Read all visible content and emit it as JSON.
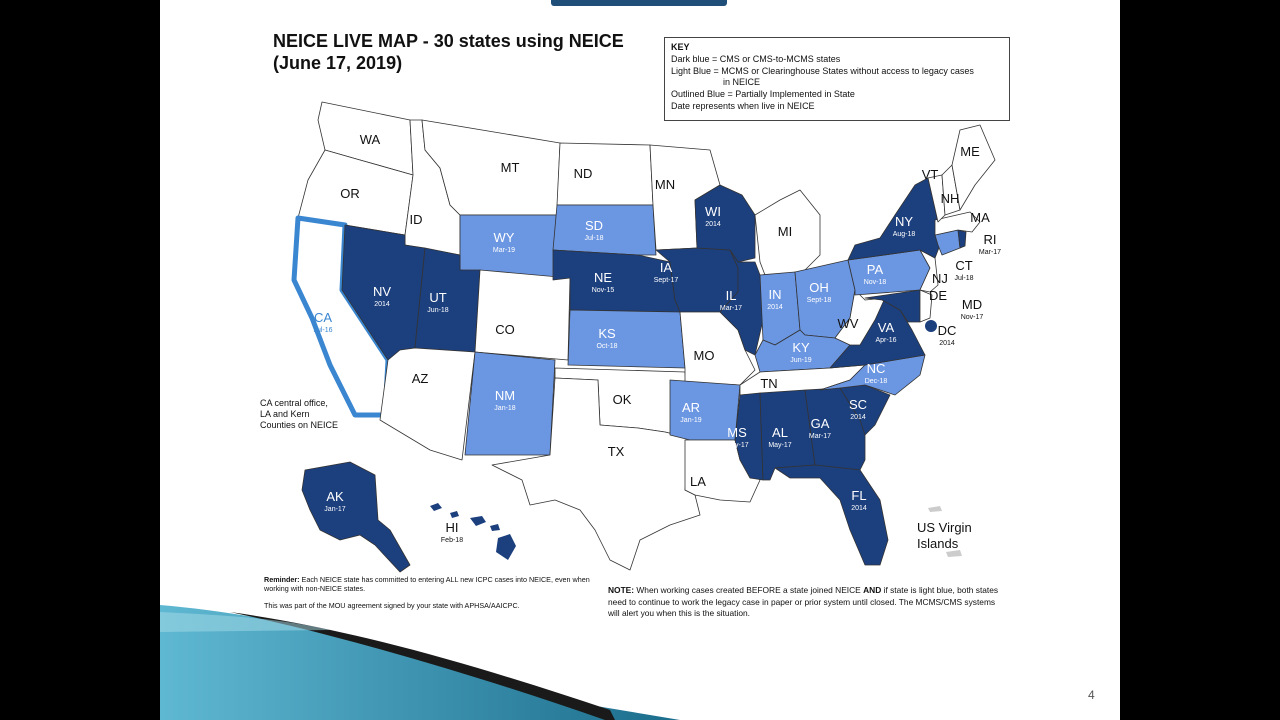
{
  "slide": {
    "title_line1": "NEICE LIVE MAP - 30 states using NEICE",
    "title_line2": "(June 17, 2019)",
    "page_number": "4"
  },
  "key": {
    "title": "KEY",
    "dark_blue": "Dark blue = CMS or CMS-to-MCMS states",
    "light_blue": "Light Blue = MCMS or Clearinghouse States without access to legacy cases",
    "light_blue_cont": "in NEICE",
    "outlined_blue": "Outlined Blue = Partially Implemented in State",
    "date_note": "Date represents when live in NEICE"
  },
  "colors": {
    "dark_blue": "#1c3f7e",
    "light_blue": "#6b96e2",
    "outline_blue": "#3a86d0",
    "not_live": "#ffffff"
  },
  "states": [
    {
      "abbr": "WA",
      "status": "none",
      "date": ""
    },
    {
      "abbr": "OR",
      "status": "none",
      "date": ""
    },
    {
      "abbr": "CA",
      "status": "partial",
      "date": "Jul-16"
    },
    {
      "abbr": "ID",
      "status": "none",
      "date": ""
    },
    {
      "abbr": "NV",
      "status": "dark",
      "date": "2014"
    },
    {
      "abbr": "MT",
      "status": "none",
      "date": ""
    },
    {
      "abbr": "WY",
      "status": "light",
      "date": "Mar-19"
    },
    {
      "abbr": "UT",
      "status": "dark",
      "date": "Jun-18"
    },
    {
      "abbr": "AZ",
      "status": "none",
      "date": ""
    },
    {
      "abbr": "CO",
      "status": "none",
      "date": ""
    },
    {
      "abbr": "NM",
      "status": "light",
      "date": "Jan-18"
    },
    {
      "abbr": "ND",
      "status": "none",
      "date": ""
    },
    {
      "abbr": "SD",
      "status": "light",
      "date": "Jul-18"
    },
    {
      "abbr": "NE",
      "status": "dark",
      "date": "Nov-15"
    },
    {
      "abbr": "KS",
      "status": "light",
      "date": "Oct-18"
    },
    {
      "abbr": "OK",
      "status": "none",
      "date": ""
    },
    {
      "abbr": "TX",
      "status": "none",
      "date": ""
    },
    {
      "abbr": "MN",
      "status": "none",
      "date": ""
    },
    {
      "abbr": "IA",
      "status": "dark",
      "date": "Sept-17"
    },
    {
      "abbr": "MO",
      "status": "none",
      "date": ""
    },
    {
      "abbr": "AR",
      "status": "light",
      "date": "Jan-19"
    },
    {
      "abbr": "LA",
      "status": "none",
      "date": ""
    },
    {
      "abbr": "WI",
      "status": "dark",
      "date": "2014"
    },
    {
      "abbr": "IL",
      "status": "dark",
      "date": "Mar-17"
    },
    {
      "abbr": "MI",
      "status": "none",
      "date": ""
    },
    {
      "abbr": "IN",
      "status": "light",
      "date": "2014"
    },
    {
      "abbr": "OH",
      "status": "light",
      "date": "Sept-18"
    },
    {
      "abbr": "KY",
      "status": "light",
      "date": "Jun-19"
    },
    {
      "abbr": "TN",
      "status": "none",
      "date": ""
    },
    {
      "abbr": "MS",
      "status": "dark",
      "date": "May-17"
    },
    {
      "abbr": "AL",
      "status": "dark",
      "date": "May-17"
    },
    {
      "abbr": "GA",
      "status": "dark",
      "date": "Mar-17"
    },
    {
      "abbr": "FL",
      "status": "dark",
      "date": "2014"
    },
    {
      "abbr": "SC",
      "status": "dark",
      "date": "2014"
    },
    {
      "abbr": "NC",
      "status": "light",
      "date": "Dec-18"
    },
    {
      "abbr": "VA",
      "status": "dark",
      "date": "Apr-16"
    },
    {
      "abbr": "WV",
      "status": "none",
      "date": ""
    },
    {
      "abbr": "PA",
      "status": "light",
      "date": "Nov-18"
    },
    {
      "abbr": "NY",
      "status": "dark",
      "date": "Aug-18"
    },
    {
      "abbr": "VT",
      "status": "none",
      "date": ""
    },
    {
      "abbr": "NH",
      "status": "none",
      "date": ""
    },
    {
      "abbr": "ME",
      "status": "none",
      "date": ""
    },
    {
      "abbr": "MA",
      "status": "none",
      "date": ""
    },
    {
      "abbr": "RI",
      "status": "dark",
      "date": "Mar-17"
    },
    {
      "abbr": "CT",
      "status": "light",
      "date": "Jul-18"
    },
    {
      "abbr": "NJ",
      "status": "none",
      "date": ""
    },
    {
      "abbr": "DE",
      "status": "none",
      "date": ""
    },
    {
      "abbr": "MD",
      "status": "dark",
      "date": "Nov-17"
    },
    {
      "abbr": "DC",
      "status": "dark",
      "date": "2014"
    },
    {
      "abbr": "AK",
      "status": "dark",
      "date": "Jan-17"
    },
    {
      "abbr": "HI",
      "status": "dark",
      "date": "Feb-18"
    }
  ],
  "territories": {
    "vi_line1": "US Virgin",
    "vi_line2": "Islands"
  },
  "notes": {
    "ca_line1": "CA central office,",
    "ca_line2": "LA and Kern",
    "ca_line3": "Counties on NEICE",
    "reminder_label": "Reminder:",
    "reminder_text": " Each NEICE state has committed to entering ALL new ICPC cases into NEICE, even when working with non-NEICE states.",
    "mou_text": "This was part of the MOU agreement signed by your state with APHSA/AAICPC.",
    "note_label": "NOTE:",
    "note_text_1": " When working cases created BEFORE a state joined NEICE ",
    "note_and": "AND",
    "note_text_2": " if state is light blue, both states need to continue to work the legacy case in paper or prior system until closed. The MCMS/CMS systems will alert you when this is the situation."
  }
}
